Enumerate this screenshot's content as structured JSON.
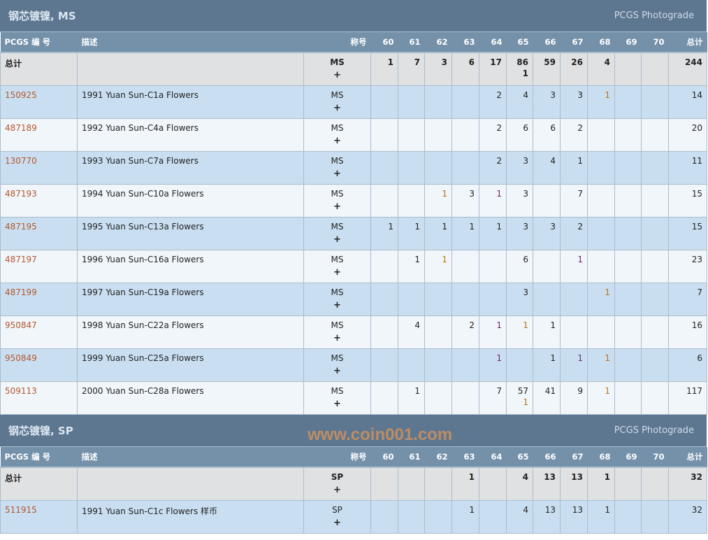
{
  "columns": [
    "PCGS 编 号",
    "描述",
    "称号",
    "60",
    "61",
    "62",
    "63",
    "64",
    "65",
    "66",
    "67",
    "68",
    "69",
    "70",
    "总计"
  ],
  "sections": [
    {
      "title": "钢芯镀镍, MS",
      "photograde": "PCGS Photograde",
      "total": {
        "label": "总计",
        "desig": "MS",
        "plus": "+",
        "grades": [
          "1",
          "7",
          "3",
          "6",
          "17",
          "86",
          "59",
          "26",
          "4",
          "",
          ""
        ],
        "g65_sub": "1",
        "sum": "244"
      },
      "rows": [
        {
          "pcgs": "150925",
          "desc": "1991 Yuan Sun-C1a Flowers",
          "desig": "MS",
          "plus": "+",
          "grades": [
            "",
            "",
            "",
            "",
            "2",
            "4",
            "3",
            "3",
            "1",
            "",
            ""
          ],
          "accent": [
            8
          ],
          "visited": [],
          "sum": "14"
        },
        {
          "pcgs": "487189",
          "desc": "1992 Yuan Sun-C4a Flowers",
          "desig": "MS",
          "plus": "+",
          "grades": [
            "",
            "",
            "",
            "",
            "2",
            "6",
            "6",
            "2",
            "",
            "",
            ""
          ],
          "accent": [],
          "visited": [],
          "sum": "20"
        },
        {
          "pcgs": "130770",
          "desc": "1993 Yuan Sun-C7a Flowers",
          "desig": "MS",
          "plus": "+",
          "grades": [
            "",
            "",
            "",
            "",
            "2",
            "3",
            "4",
            "1",
            "",
            "",
            ""
          ],
          "accent": [],
          "visited": [],
          "sum": "11"
        },
        {
          "pcgs": "487193",
          "desc": "1994 Yuan Sun-C10a Flowers",
          "desig": "MS",
          "plus": "+",
          "grades": [
            "",
            "",
            "1",
            "3",
            "1",
            "3",
            "",
            "7",
            "",
            "",
            ""
          ],
          "accent": [
            2
          ],
          "visited": [
            4
          ],
          "sum": "15"
        },
        {
          "pcgs": "487195",
          "desc": "1995 Yuan Sun-C13a Flowers",
          "desig": "MS",
          "plus": "+",
          "grades": [
            "1",
            "1",
            "1",
            "1",
            "1",
            "3",
            "3",
            "2",
            "",
            "",
            ""
          ],
          "accent": [],
          "visited": [],
          "sum": "15"
        },
        {
          "pcgs": "487197",
          "desc": "1996 Yuan Sun-C16a Flowers",
          "desig": "MS",
          "plus": "+",
          "grades": [
            "",
            "1",
            "1",
            "",
            "",
            "6",
            "",
            "1",
            "",
            "",
            ""
          ],
          "accent": [
            2
          ],
          "visited": [
            7
          ],
          "sum": "23"
        },
        {
          "pcgs": "487199",
          "desc": "1997 Yuan Sun-C19a Flowers",
          "desig": "MS",
          "plus": "+",
          "grades": [
            "",
            "",
            "",
            "",
            "",
            "3",
            "",
            "",
            "1",
            "",
            ""
          ],
          "accent": [
            8
          ],
          "visited": [],
          "sum": "7"
        },
        {
          "pcgs": "950847",
          "desc": "1998 Yuan Sun-C22a Flowers",
          "desig": "MS",
          "plus": "+",
          "grades": [
            "",
            "4",
            "",
            "2",
            "1",
            "1",
            "1",
            "",
            "",
            "",
            ""
          ],
          "accent": [
            5
          ],
          "visited": [
            4
          ],
          "sum": "16"
        },
        {
          "pcgs": "950849",
          "desc": "1999 Yuan Sun-C25a Flowers",
          "desig": "MS",
          "plus": "+",
          "grades": [
            "",
            "",
            "",
            "",
            "1",
            "",
            "1",
            "1",
            "1",
            "",
            ""
          ],
          "accent": [
            8
          ],
          "visited": [
            4,
            7
          ],
          "sum": "6"
        },
        {
          "pcgs": "509113",
          "desc": "2000 Yuan Sun-C28a Flowers",
          "desig": "MS",
          "plus": "+",
          "grades": [
            "",
            "1",
            "",
            "",
            "7",
            "57",
            "41",
            "9",
            "1",
            "",
            ""
          ],
          "g65_sub": "1",
          "accent": [
            8
          ],
          "visited": [],
          "sum": "117"
        }
      ]
    },
    {
      "title": "钢芯镀镍, SP",
      "photograde": "PCGS Photograde",
      "total": {
        "label": "总计",
        "desig": "SP",
        "plus": "+",
        "grades": [
          "",
          "",
          "",
          "1",
          "",
          "4",
          "13",
          "13",
          "1",
          "",
          ""
        ],
        "sum": "32"
      },
      "rows": [
        {
          "pcgs": "511915",
          "desc": "1991 Yuan Sun-C1c Flowers 样币",
          "desig": "SP",
          "plus": "+",
          "grades": [
            "",
            "",
            "",
            "1",
            "",
            "4",
            "13",
            "13",
            "1",
            "",
            ""
          ],
          "accent": [],
          "visited": [],
          "sum": "32"
        }
      ]
    }
  ],
  "watermark": "www.coin001.com",
  "colors": {
    "header": "#5d7791",
    "colheader": "#7591aa",
    "row_odd": "#c9dff1",
    "row_even": "#f1f6fb",
    "total": "#e0e1e3",
    "link": "#b5562c"
  }
}
